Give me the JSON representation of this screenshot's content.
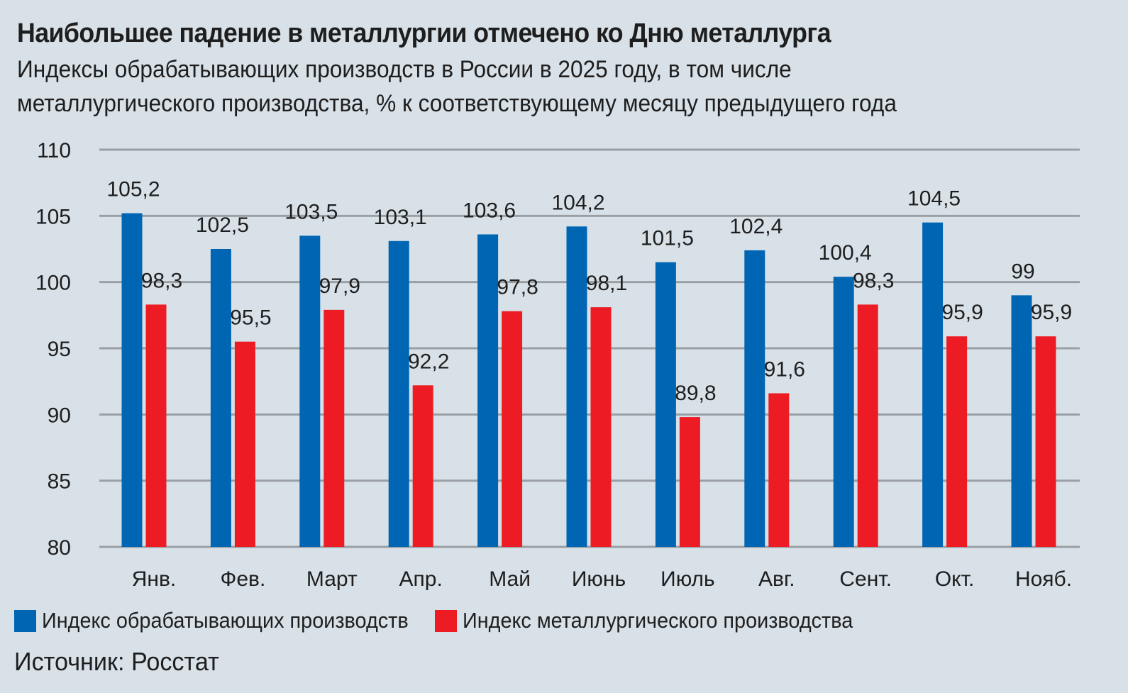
{
  "title": "Наибольшее падение в металлургии отмечено ко Дню металлурга",
  "subtitle_line1": "Индексы обрабатывающих производств в России в 2025 году, в том числе",
  "subtitle_line2": "металлургического производства, % к соответствующему месяцу предыдущего года",
  "source": "Источник: Росстат",
  "colors": {
    "background": "#d8e1e8",
    "manufacturing": "#0066b3",
    "metallurgy": "#ed1c24",
    "grid": "#9a9fa4"
  },
  "chart_data": {
    "type": "bar",
    "title": "Наибольшее падение в металлургии отмечено ко Дню металлурга",
    "xlabel": "",
    "ylabel": "",
    "ylim": [
      80,
      110
    ],
    "yticks": [
      110,
      105,
      100,
      95,
      90,
      85,
      80
    ],
    "grid": true,
    "legend_position": "bottom",
    "categories": [
      "Янв.",
      "Фев.",
      "Март",
      "Апр.",
      "Май",
      "Июнь",
      "Июль",
      "Авг.",
      "Сент.",
      "Окт.",
      "Нояб."
    ],
    "series": [
      {
        "name": "Индекс обрабатывающих производств",
        "color": "#0066b3",
        "values": [
          105.2,
          102.5,
          103.5,
          103.1,
          103.6,
          104.2,
          101.5,
          102.4,
          100.4,
          104.5,
          99
        ],
        "labels": [
          "105,2",
          "102,5",
          "103,5",
          "103,1",
          "103,6",
          "104,2",
          "101,5",
          "102,4",
          "100,4",
          "104,5",
          "99"
        ]
      },
      {
        "name": "Индекс металлургического производства",
        "color": "#ed1c24",
        "values": [
          98.3,
          95.5,
          97.9,
          92.2,
          97.8,
          98.1,
          89.8,
          91.6,
          98.3,
          95.9,
          95.9
        ],
        "labels": [
          "98,3",
          "95,5",
          "97,9",
          "92,2",
          "97,8",
          "98,1",
          "89,8",
          "91,6",
          "98,3",
          "95,9",
          "95,9"
        ]
      }
    ]
  }
}
